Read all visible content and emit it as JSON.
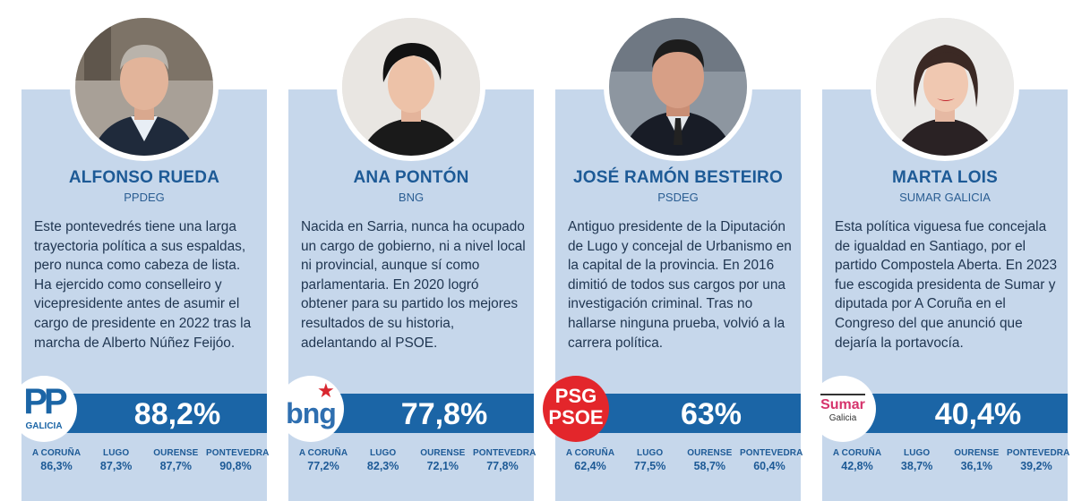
{
  "candidates": [
    {
      "name": "ALFONSO RUEDA",
      "party": "PPDEG",
      "bio": "Este pontevedrés tiene una larga trayectoria política a sus espaldas, pero nunca como cabeza de lista. Ha ejercido como conselleiro y vicepresidente antes de asumir el cargo de presidente en 2022 tras la marcha de Alberto Núñez Feijóo.",
      "percent": "88,2%",
      "logo_text": "PP",
      "logo_sub": "GALICIA",
      "provinces": [
        {
          "name": "A CORUÑA",
          "value": "86,3%"
        },
        {
          "name": "LUGO",
          "value": "87,3%"
        },
        {
          "name": "OURENSE",
          "value": "87,7%"
        },
        {
          "name": "PONTEVEDRA",
          "value": "90,8%"
        }
      ]
    },
    {
      "name": "ANA PONTÓN",
      "party": "BNG",
      "bio": "Nacida en Sarria, nunca ha ocupado un cargo de gobierno, ni a nivel local ni provincial, aunque sí como parlamentaria. En 2020 logró obtener para su partido los mejores resultados de su historia, adelantando al PSOE.",
      "percent": "77,8%",
      "logo_text": "bng",
      "provinces": [
        {
          "name": "A CORUÑA",
          "value": "77,2%"
        },
        {
          "name": "LUGO",
          "value": "82,3%"
        },
        {
          "name": "OURENSE",
          "value": "72,1%"
        },
        {
          "name": "PONTEVEDRA",
          "value": "77,8%"
        }
      ]
    },
    {
      "name": "JOSÉ RAMÓN BESTEIRO",
      "party": "PSDEG",
      "bio": "Antiguo presidente de la Diputación de Lugo y concejal de Urbanismo en la capital de la provincia. En 2016 dimitió de todos sus cargos por una investigación criminal. Tras no hallarse ninguna prueba, volvió a la carrera política.",
      "percent": "63%",
      "logo_text": "PSG",
      "logo_sub": "PSOE",
      "provinces": [
        {
          "name": "A CORUÑA",
          "value": "62,4%"
        },
        {
          "name": "LUGO",
          "value": "77,5%"
        },
        {
          "name": "OURENSE",
          "value": "58,7%"
        },
        {
          "name": "PONTEVEDRA",
          "value": "60,4%"
        }
      ]
    },
    {
      "name": "MARTA LOIS",
      "party": "SUMAR GALICIA",
      "bio": "Esta política viguesa fue concejala de igualdad en  Santiago, por el partido Compostela Aberta. En 2023 fue escogida presidenta de Sumar y diputada por A Coruña en el Congreso del que anunció que dejaría la portavocía.",
      "percent": "40,4%",
      "logo_text": "Sumar",
      "logo_sub": "Galicia",
      "provinces": [
        {
          "name": "A CORUÑA",
          "value": "42,8%"
        },
        {
          "name": "LUGO",
          "value": "38,7%"
        },
        {
          "name": "OURENSE",
          "value": "36,1%"
        },
        {
          "name": "PONTEVEDRA",
          "value": "39,2%"
        }
      ]
    }
  ]
}
